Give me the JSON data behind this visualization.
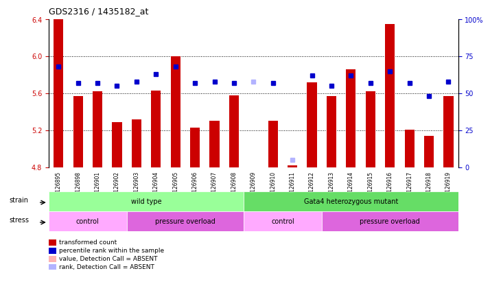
{
  "title": "GDS2316 / 1435182_at",
  "samples": [
    "GSM126895",
    "GSM126898",
    "GSM126901",
    "GSM126902",
    "GSM126903",
    "GSM126904",
    "GSM126905",
    "GSM126906",
    "GSM126907",
    "GSM126908",
    "GSM126909",
    "GSM126910",
    "GSM126911",
    "GSM126912",
    "GSM126913",
    "GSM126914",
    "GSM126915",
    "GSM126916",
    "GSM126917",
    "GSM126918",
    "GSM126919"
  ],
  "bar_values": [
    6.55,
    5.57,
    5.62,
    5.29,
    5.32,
    5.63,
    6.0,
    5.23,
    5.3,
    5.58,
    4.8,
    5.3,
    4.82,
    5.72,
    5.57,
    5.86,
    5.62,
    6.35,
    5.21,
    5.14,
    5.57
  ],
  "bar_absent": [
    false,
    false,
    false,
    false,
    false,
    false,
    false,
    false,
    false,
    false,
    true,
    false,
    false,
    false,
    false,
    false,
    false,
    false,
    false,
    false,
    false
  ],
  "rank_values": [
    68,
    57,
    57,
    55,
    58,
    63,
    68,
    57,
    58,
    57,
    58,
    57,
    5,
    62,
    55,
    62,
    57,
    65,
    57,
    48,
    58
  ],
  "rank_absent": [
    false,
    false,
    false,
    false,
    false,
    false,
    false,
    false,
    false,
    false,
    true,
    false,
    true,
    false,
    false,
    false,
    false,
    false,
    false,
    false,
    false
  ],
  "ylim_left": [
    4.8,
    6.4
  ],
  "ylim_right": [
    0,
    100
  ],
  "yticks_left": [
    4.8,
    5.2,
    5.6,
    6.0,
    6.4
  ],
  "yticks_right": [
    0,
    25,
    50,
    75,
    100
  ],
  "grid_lines": [
    6.0,
    5.6,
    5.2
  ],
  "bar_color": "#cc0000",
  "bar_absent_color": "#ffb3b3",
  "rank_color": "#0000cc",
  "rank_absent_color": "#b3b3ff",
  "bg_color": "#ffffff",
  "plot_bg": "#ffffff",
  "strain_groups": [
    {
      "label": "wild type",
      "start": 0,
      "end": 9,
      "color": "#99ff99"
    },
    {
      "label": "Gata4 heterozygous mutant",
      "start": 10,
      "end": 20,
      "color": "#66dd66"
    }
  ],
  "stress_groups": [
    {
      "label": "control",
      "start": 0,
      "end": 3,
      "color": "#ffaaff"
    },
    {
      "label": "pressure overload",
      "start": 4,
      "end": 9,
      "color": "#dd66dd"
    },
    {
      "label": "control",
      "start": 10,
      "end": 13,
      "color": "#ffaaff"
    },
    {
      "label": "pressure overload",
      "start": 14,
      "end": 20,
      "color": "#dd66dd"
    }
  ],
  "legend_items": [
    {
      "label": "transformed count",
      "color": "#cc0000"
    },
    {
      "label": "percentile rank within the sample",
      "color": "#0000cc"
    },
    {
      "label": "value, Detection Call = ABSENT",
      "color": "#ffb3b3"
    },
    {
      "label": "rank, Detection Call = ABSENT",
      "color": "#b3b3ff"
    }
  ]
}
